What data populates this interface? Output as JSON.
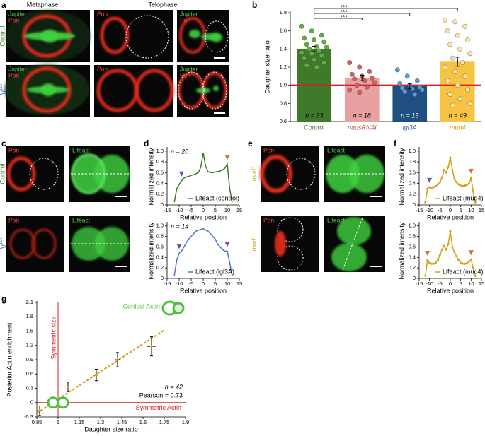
{
  "figure": {
    "a": {
      "letter": "a",
      "stages": [
        "Metaphase",
        "Telophase"
      ],
      "rows": [
        {
          "text": "Control"
        },
        {
          "text": "lgl",
          "sup": "3A"
        }
      ]
    },
    "b": {
      "letter": "b"
    },
    "c": {
      "letter": "c",
      "rows": [
        {
          "text": "Control"
        },
        {
          "text": "lgl",
          "sup": "3A"
        }
      ]
    },
    "d": {
      "letter": "d"
    },
    "e": {
      "letter": "e",
      "rows": [
        {
          "text": "mud",
          "sup": "4"
        },
        {
          "text": "mud",
          "sup": "4"
        }
      ]
    },
    "f": {
      "letter": "f"
    },
    "g": {
      "letter": "g"
    },
    "channels": {
      "jupiter": "Jupiter",
      "pon": "Pon",
      "lifeact": "Lifeact"
    }
  },
  "chart_data": [
    {
      "type": "bar",
      "y_label": "Daughter size ratio",
      "categories": [
        "Control",
        "nausRNAi",
        "lgl3A",
        "mud4"
      ],
      "values": [
        1.4,
        1.08,
        0.99,
        1.26
      ],
      "errors": [
        0.03,
        0.03,
        0.03,
        0.05
      ],
      "colors": [
        "#3f7a2b",
        "#e8a0a0",
        "#1f4f80",
        "#f6c342"
      ],
      "point_colors": [
        "#5fae3e",
        "#d45f5f",
        "#5b9bd5",
        "#fbe3a0"
      ],
      "label_colors": [
        "#3f7a2b",
        "#c0504d",
        "#2f5f9f",
        "#d9a400"
      ],
      "points": [
        [
          1.65,
          1.6,
          1.55,
          1.52,
          1.5,
          1.48,
          1.45,
          1.43,
          1.42,
          1.4,
          1.38,
          1.36,
          1.35,
          1.33,
          1.3,
          1.28,
          1.25,
          1.22,
          1.2
        ],
        [
          1.25,
          1.2,
          1.15,
          1.12,
          1.1,
          1.08,
          1.07,
          1.05,
          1.03,
          1.0,
          0.98,
          0.95,
          0.92
        ],
        [
          1.17,
          1.1,
          1.05,
          1.02,
          1.0,
          0.98,
          0.97,
          0.96,
          0.95,
          0.93,
          0.9
        ],
        [
          1.72,
          1.7,
          1.65,
          1.6,
          1.55,
          1.5,
          1.45,
          1.4,
          1.35,
          1.3,
          1.25,
          1.2,
          1.15,
          1.1,
          1.05,
          1.0,
          0.95,
          0.9,
          0.85,
          0.8,
          0.78
        ]
      ],
      "n_labels": [
        "n = 33",
        "n = 18",
        "n = 13",
        "n = 49"
      ],
      "reference_line": 1,
      "reference_color": "#d62020",
      "significance": [
        "***",
        "***",
        "***"
      ],
      "ylim": [
        0.6,
        1.8
      ],
      "yticks": [
        0.6,
        0.8,
        {
          "value": 1,
          "label": "1.0"
        },
        1.2,
        1.4,
        1.6,
        1.8
      ],
      "grid": false
    },
    {
      "type": "line",
      "y_label": "Normalized intensity",
      "x_label": "Relative position",
      "n_label": "n = 20",
      "legend": "lower center",
      "show_points": false,
      "x": [
        -12,
        -11,
        -10,
        -9,
        -8,
        -7,
        -6,
        -5,
        -4,
        -3,
        -2,
        -1,
        0,
        1,
        2,
        3,
        4,
        5,
        6,
        7,
        8,
        9,
        10,
        11,
        12
      ],
      "series": [
        {
          "name": "Lifeact (control)",
          "color": "#3f7a2b",
          "values": [
            0.05,
            0.3,
            0.38,
            0.45,
            0.5,
            0.52,
            0.53,
            0.55,
            0.56,
            0.58,
            0.6,
            0.7,
            0.97,
            0.72,
            0.62,
            0.6,
            0.6,
            0.61,
            0.62,
            0.63,
            0.65,
            0.68,
            0.76,
            0.3,
            0.05
          ]
        }
      ],
      "markers": [
        {
          "x": -9,
          "color": "#6b4fa0"
        },
        {
          "x": 10,
          "color": "#e36c1f"
        }
      ],
      "xlim": [
        -15,
        15
      ],
      "xticks": [
        -15,
        -10,
        -5,
        0,
        5,
        10,
        15
      ],
      "ylim": [
        0,
        1.05
      ],
      "yticks": [
        0,
        0.2,
        0.4,
        0.6,
        0.8,
        {
          "value": 1,
          "label": "1.0"
        }
      ]
    },
    {
      "type": "line",
      "y_label": "Normalized intensity",
      "x_label": "Relative position",
      "n_label": "n = 14",
      "legend": "lower center",
      "show_points": false,
      "x": [
        -12,
        -11,
        -10,
        -9,
        -8,
        -7,
        -6,
        -5,
        -4,
        -3,
        -2,
        -1,
        0,
        1,
        2,
        3,
        4,
        5,
        6,
        7,
        8,
        9,
        10,
        11,
        12
      ],
      "series": [
        {
          "name": "Lifeact (lgl3A)",
          "color": "#4a74c4",
          "values": [
            0.05,
            0.35,
            0.48,
            0.52,
            0.6,
            0.68,
            0.75,
            0.8,
            0.85,
            0.9,
            0.92,
            0.93,
            0.95,
            0.92,
            0.9,
            0.85,
            0.8,
            0.75,
            0.65,
            0.6,
            0.55,
            0.52,
            0.52,
            0.3,
            0.05
          ]
        }
      ],
      "markers": [
        {
          "x": -10,
          "color": "#6b4fa0"
        },
        {
          "x": 10,
          "color": "#6b4fa0"
        }
      ],
      "xlim": [
        -15,
        15
      ],
      "xticks": [
        -15,
        -10,
        -5,
        0,
        5,
        10,
        15
      ],
      "ylim": [
        0,
        1.05
      ],
      "yticks": [
        0,
        0.2,
        0.4,
        0.6,
        0.8,
        {
          "value": 1,
          "label": "1.0"
        }
      ]
    },
    {
      "type": "line",
      "y_label": "Normalized intensity",
      "x_label": "Relative position",
      "legend": "lower center",
      "show_points": true,
      "x": [
        -12,
        -11,
        -10,
        -9,
        -8,
        -7,
        -6,
        -5,
        -4,
        -3,
        -2,
        -1,
        0,
        1,
        2,
        3,
        4,
        5,
        6,
        7,
        8,
        9,
        10,
        11,
        12
      ],
      "series": [
        {
          "name": "Lifeact (mud4)",
          "color": "#d4a017",
          "values": [
            0.05,
            0.3,
            0.33,
            0.32,
            0.33,
            0.35,
            0.38,
            0.42,
            0.5,
            0.65,
            0.6,
            0.7,
            0.88,
            0.65,
            0.48,
            0.42,
            0.38,
            0.36,
            0.35,
            0.36,
            0.37,
            0.4,
            0.5,
            0.25,
            0.05
          ]
        }
      ],
      "markers": [
        {
          "x": -10,
          "color": "#6b4fa0"
        },
        {
          "x": 10,
          "color": "#e36c1f"
        }
      ],
      "xlim": [
        -15,
        15
      ],
      "xticks": [
        -15,
        -10,
        -5,
        0,
        5,
        10,
        15
      ],
      "ylim": [
        0,
        1.05
      ],
      "yticks": [
        0,
        0.2,
        0.4,
        0.6,
        0.8,
        {
          "value": 1,
          "label": "1.0"
        }
      ]
    },
    {
      "type": "line",
      "y_label": "Normalized intensity",
      "x_label": "Relative position",
      "legend": "lower center",
      "show_points": true,
      "x": [
        -12,
        -11,
        -10,
        -9,
        -8,
        -7,
        -6,
        -5,
        -4,
        -3,
        -2,
        -1,
        0,
        1,
        2,
        3,
        4,
        5,
        6,
        7,
        8,
        9,
        10,
        11,
        12
      ],
      "series": [
        {
          "name": "Lifeact (mud4)",
          "color": "#d4a017",
          "values": [
            0.05,
            0.35,
            0.3,
            0.28,
            0.28,
            0.3,
            0.35,
            0.45,
            0.55,
            0.62,
            0.55,
            0.65,
            0.9,
            0.6,
            0.5,
            0.42,
            0.35,
            0.3,
            0.28,
            0.28,
            0.29,
            0.32,
            0.36,
            0.2,
            0.05
          ]
        }
      ],
      "markers": [
        {
          "x": -11,
          "color": "#e36c1f"
        },
        {
          "x": 10,
          "color": "#e36c1f"
        }
      ],
      "xlim": [
        -15,
        15
      ],
      "xticks": [
        -15,
        -10,
        -5,
        0,
        5,
        10,
        15
      ],
      "ylim": [
        0,
        1.05
      ],
      "yticks": [
        0,
        0.2,
        0.4,
        0.6,
        0.8,
        {
          "value": 1,
          "label": "1.0"
        }
      ]
    },
    {
      "type": "scatter",
      "y_label": "Posterior Actin enrichment",
      "x_label": "Daughter size ratio",
      "x": [
        0.87,
        1.07,
        1.27,
        1.42,
        1.66
      ],
      "values": [
        -0.17,
        0.33,
        0.58,
        0.9,
        1.18
      ],
      "x_errors": [
        0.02,
        0.02,
        0.02,
        0.02,
        0.03
      ],
      "errors": [
        0.1,
        0.1,
        0.12,
        0.15,
        0.2
      ],
      "color": "#d4a017",
      "fit_line": {
        "x": [
          0.85,
          1.75
        ],
        "y": [
          -0.22,
          1.52
        ]
      },
      "ref_x": 1,
      "ref_y": 0,
      "ref_color": "#d62020",
      "ref_x_label": "Symmetric size",
      "ref_y_label": "Symmetric Actin",
      "annotations": [
        "n = 42",
        "Pearson = 0.73"
      ],
      "icon_label": "Cortical Actin",
      "xlim": [
        0.85,
        1.9
      ],
      "xticks": [
        0.85,
        1,
        1.15,
        1.3,
        1.45,
        1.6,
        1.75,
        1.9
      ],
      "ylim": [
        -0.3,
        2.1
      ],
      "yticks": [
        -0.3,
        0,
        0.3,
        0.6,
        0.9,
        1.2,
        1.5,
        1.8,
        2.1
      ]
    }
  ]
}
